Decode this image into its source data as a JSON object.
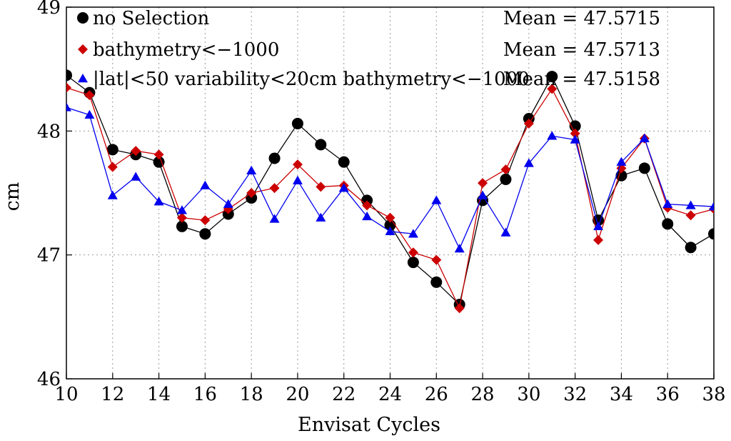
{
  "chart_data": {
    "type": "line",
    "title": "",
    "xlabel": "Envisat Cycles",
    "ylabel": "cm",
    "xlim": [
      10,
      38
    ],
    "ylim": [
      46,
      49
    ],
    "x_ticks": [
      10,
      12,
      14,
      16,
      18,
      20,
      22,
      24,
      26,
      28,
      30,
      32,
      34,
      36,
      38
    ],
    "y_ticks": [
      46,
      47,
      48,
      49
    ],
    "grid": true,
    "legend_position": "top-left",
    "x": [
      10,
      11,
      12,
      13,
      14,
      15,
      16,
      17,
      18,
      19,
      20,
      21,
      22,
      23,
      24,
      25,
      26,
      27,
      28,
      29,
      30,
      31,
      32,
      33,
      34,
      35,
      36,
      37,
      38
    ],
    "series": [
      {
        "name": "no Selection",
        "marker": "circle",
        "color": "#000000",
        "mean_label": "Mean = 47.5715",
        "values": [
          48.45,
          48.31,
          47.85,
          47.81,
          47.75,
          47.23,
          47.17,
          47.33,
          47.46,
          47.78,
          48.06,
          47.89,
          47.75,
          47.44,
          47.24,
          46.94,
          46.78,
          46.6,
          47.44,
          47.61,
          48.1,
          48.44,
          48.04,
          47.28,
          47.64,
          47.7,
          47.25,
          47.06,
          47.17
        ]
      },
      {
        "name": "bathymetry<−1000",
        "marker": "diamond",
        "color": "#cc0000",
        "mean_label": "Mean = 47.5713",
        "values": [
          48.35,
          48.29,
          47.71,
          47.84,
          47.81,
          47.3,
          47.28,
          47.37,
          47.5,
          47.54,
          47.73,
          47.55,
          47.56,
          47.4,
          47.3,
          47.02,
          46.96,
          46.57,
          47.58,
          47.69,
          48.06,
          48.34,
          47.98,
          47.12,
          47.7,
          47.94,
          47.38,
          47.32,
          47.37
        ]
      },
      {
        "name": "|lat|<50 variability<20cm bathymetry<−1000",
        "marker": "triangle",
        "color": "#0000ee",
        "mean_label": "Mean = 47.5158",
        "values": [
          48.19,
          48.13,
          47.48,
          47.63,
          47.43,
          47.36,
          47.56,
          47.41,
          47.68,
          47.29,
          47.6,
          47.3,
          47.54,
          47.31,
          47.19,
          47.17,
          47.44,
          47.05,
          47.48,
          47.18,
          47.74,
          47.96,
          47.93,
          47.23,
          47.75,
          47.94,
          47.41,
          47.4,
          47.39
        ]
      }
    ]
  }
}
